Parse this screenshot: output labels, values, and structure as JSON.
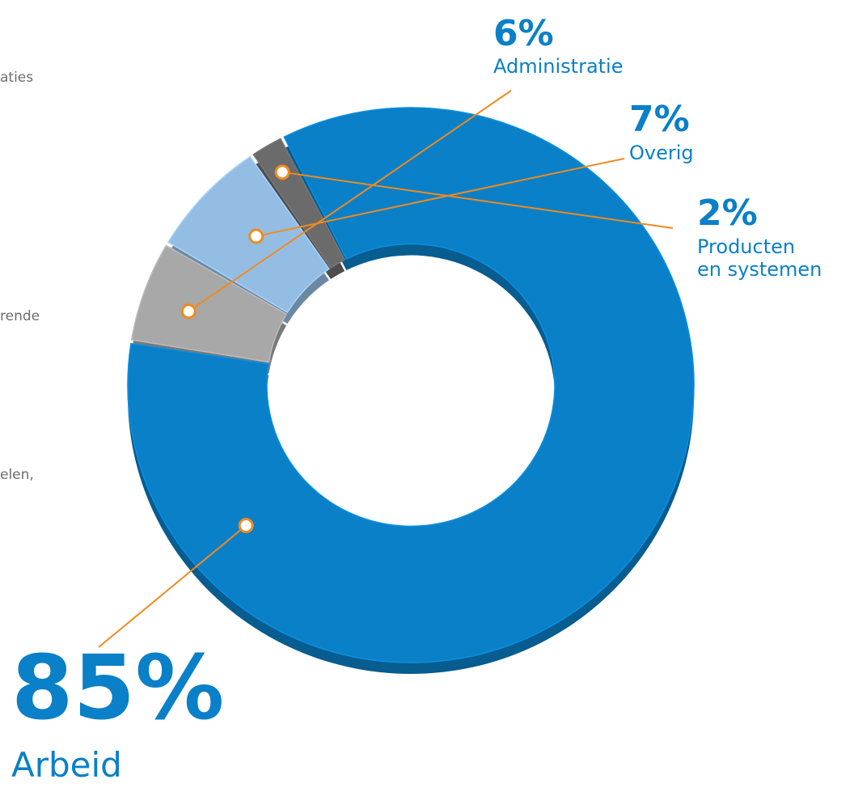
{
  "side_text": [
    "aties",
    "rende",
    "elen,"
  ],
  "colors": {
    "arbeid": "#0a80c8",
    "administratie": "#a8a8a8",
    "overig": "#94bde3",
    "producten": "#6b6b6b",
    "label_text": "#0a80c8",
    "leader": "#f08a1e"
  },
  "chart_data": {
    "type": "pie",
    "style": "3d-donut",
    "title": "",
    "slices": [
      {
        "pct_label": "6%",
        "label_lines": [
          "Administratie"
        ],
        "value": 6,
        "color": "#a8a8a8"
      },
      {
        "pct_label": "7%",
        "label_lines": [
          "Overig"
        ],
        "value": 7,
        "color": "#94bde3"
      },
      {
        "pct_label": "2%",
        "label_lines": [
          "Producten",
          "en systemen"
        ],
        "value": 2,
        "color": "#6b6b6b"
      },
      {
        "pct_label": "85%",
        "label_lines": [
          "Arbeid"
        ],
        "value": 85,
        "color": "#0a80c8"
      }
    ]
  }
}
